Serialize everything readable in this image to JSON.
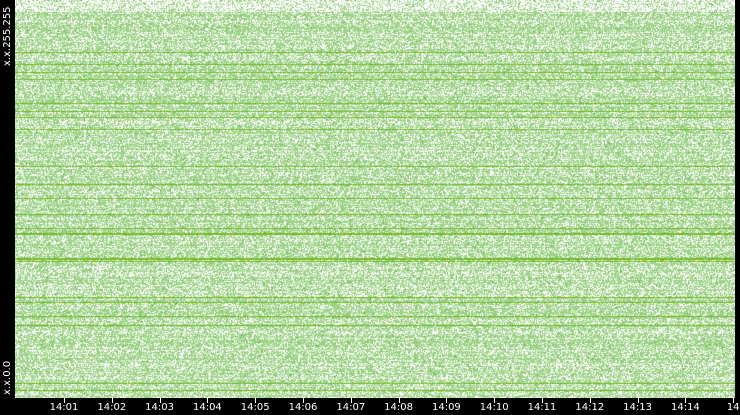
{
  "chart_data": {
    "type": "heatmap",
    "title": "",
    "xlabel": "",
    "ylabel": "",
    "y_tick_labels": [
      "x.x.255.255",
      "x.x.0.0"
    ],
    "x_tick_labels": [
      "14:01",
      "14:02",
      "14:03",
      "14:04",
      "14:05",
      "14:06",
      "14:07",
      "14:08",
      "14:09",
      "14:10",
      "14:11",
      "14:12",
      "14:13",
      "14:14",
      "14"
    ],
    "grid": false,
    "colors": {
      "background": "#000000",
      "empty": "#ffffff",
      "low": "#9fd38a",
      "mid": "#6ab84a",
      "high": "#7fb800",
      "peak": "#e0a000"
    }
  }
}
